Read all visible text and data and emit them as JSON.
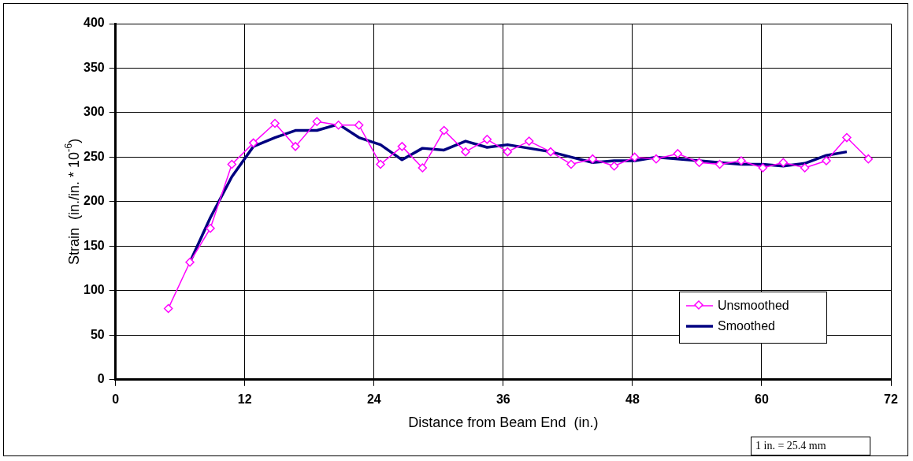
{
  "chart_data": {
    "type": "line",
    "xlabel": "Distance from Beam End  (in.)",
    "ylabel": "Strain  (in./in. * 10$^{-6}$)",
    "xlim": [
      0,
      72
    ],
    "xticks": [
      0,
      12,
      24,
      36,
      48,
      60,
      72
    ],
    "ylim": [
      0,
      400
    ],
    "yticks": [
      0,
      50,
      100,
      150,
      200,
      250,
      300,
      350,
      400
    ],
    "grid": true,
    "legend": "bottom right",
    "annotations": [
      "1 in. = 25.4 mm"
    ],
    "series": [
      {
        "name": "Unsmoothed",
        "color": "#ff00ff",
        "marker": "diamond",
        "x": [
          4.9,
          6.9,
          8.8,
          10.8,
          12.8,
          14.8,
          16.7,
          18.7,
          20.7,
          22.6,
          24.6,
          26.6,
          28.5,
          30.5,
          32.5,
          34.5,
          36.4,
          38.4,
          40.4,
          42.3,
          44.3,
          46.3,
          48.2,
          50.2,
          52.2,
          54.2,
          56.1,
          58.1,
          60.1,
          62.0,
          64.0,
          66.0,
          67.9,
          69.9
        ],
        "values": [
          80,
          132,
          170,
          242,
          266,
          288,
          262,
          290,
          286,
          286,
          242,
          262,
          238,
          280,
          256,
          270,
          256,
          268,
          256,
          242,
          248,
          240,
          250,
          248,
          254,
          244,
          242,
          246,
          238,
          244,
          238,
          246,
          272,
          248
        ]
      },
      {
        "name": "Smoothed",
        "color": "#000080",
        "marker": "none",
        "x": [
          6.9,
          8.8,
          10.8,
          12.8,
          14.8,
          16.7,
          18.7,
          20.7,
          22.6,
          24.6,
          26.6,
          28.5,
          30.5,
          32.5,
          34.5,
          36.4,
          38.4,
          40.4,
          42.3,
          44.3,
          46.3,
          48.2,
          50.2,
          52.2,
          54.2,
          56.1,
          58.1,
          60.1,
          62.0,
          64.0,
          66.0,
          67.9
        ],
        "values": [
          132,
          182,
          228,
          262,
          272,
          280,
          280,
          287,
          272,
          264,
          247,
          260,
          258,
          268,
          261,
          264,
          260,
          256,
          250,
          244,
          246,
          246,
          250,
          248,
          246,
          244,
          242,
          242,
          240,
          243,
          252,
          256
        ]
      }
    ]
  }
}
